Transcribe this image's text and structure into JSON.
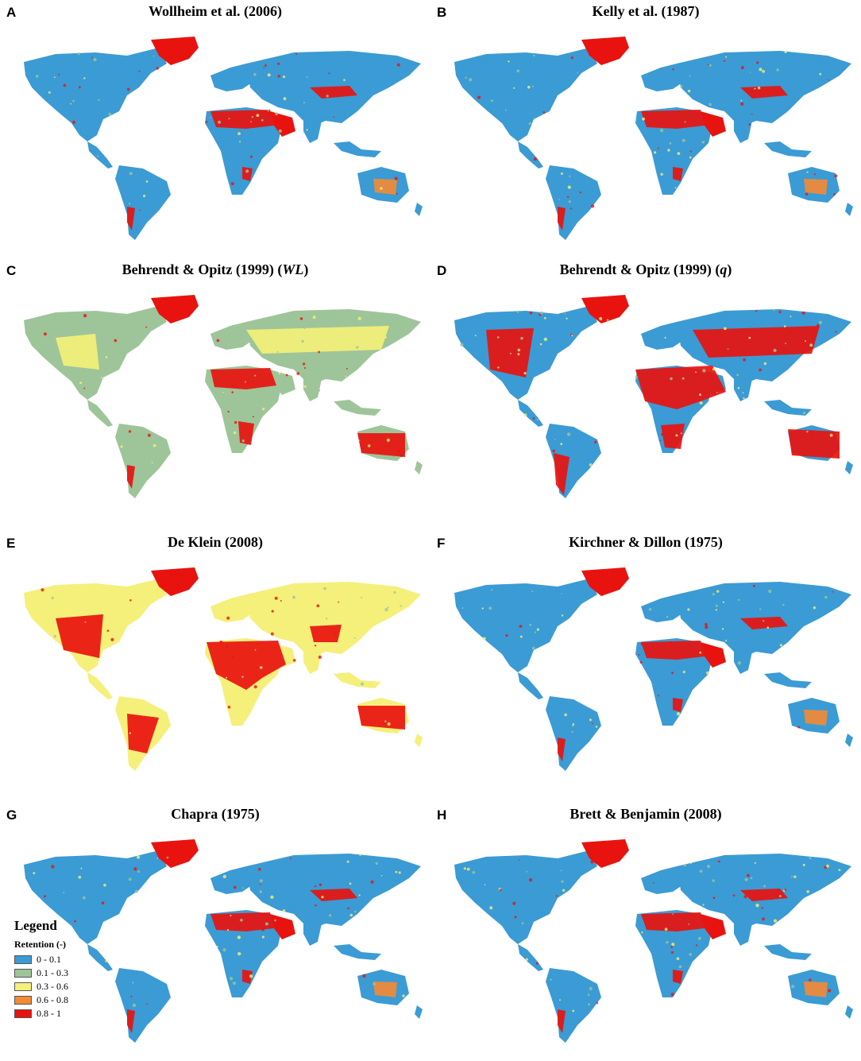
{
  "panels": [
    {
      "letter": "A",
      "title": "Wollheim et al. (2006)",
      "title_suffix": "",
      "scheme": "blue"
    },
    {
      "letter": "B",
      "title": "Kelly et al. (1987)",
      "title_suffix": "",
      "scheme": "blue"
    },
    {
      "letter": "C",
      "title": "Behrendt & Opitz (1999) (",
      "title_italic": "WL",
      "title_suffix": ")",
      "scheme": "mixed"
    },
    {
      "letter": "D",
      "title": "Behrendt & Opitz (1999) (",
      "title_italic": "q",
      "title_suffix": ")",
      "scheme": "red"
    },
    {
      "letter": "E",
      "title": "De Klein (2008)",
      "title_suffix": "",
      "scheme": "yellow"
    },
    {
      "letter": "F",
      "title": "Kirchner & Dillon (1975)",
      "title_suffix": "",
      "scheme": "blue"
    },
    {
      "letter": "G",
      "title": "Chapra (1975)",
      "title_suffix": "",
      "scheme": "blue"
    },
    {
      "letter": "H",
      "title": "Brett & Benjamin (2008)",
      "title_suffix": "",
      "scheme": "blue"
    }
  ],
  "legend": {
    "title": "Legend",
    "subtitle": "Retention (-)",
    "classes": [
      {
        "label": "0 - 0.1",
        "color": "#3b9bd4"
      },
      {
        "label": "0.1 - 0.3",
        "color": "#9ec59a"
      },
      {
        "label": "0.3 - 0.6",
        "color": "#f4f07a"
      },
      {
        "label": "0.6 - 0.8",
        "color": "#f28a35"
      },
      {
        "label": "0.8 - 1",
        "color": "#e8130f"
      }
    ]
  }
}
